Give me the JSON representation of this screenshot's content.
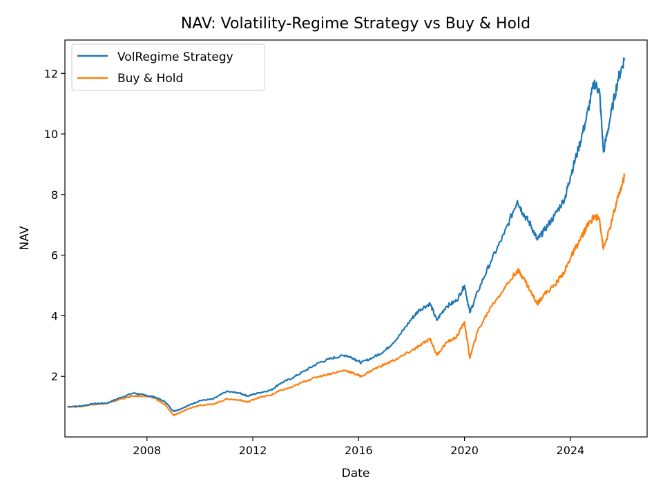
{
  "chart_data": {
    "type": "line",
    "title": "NAV: Volatility-Regime Strategy vs Buy & Hold",
    "xlabel": "Date",
    "ylabel": "NAV",
    "x_ticks": [
      "2008",
      "2012",
      "2016",
      "2020",
      "2024"
    ],
    "y_ticks": [
      "2",
      "4",
      "6",
      "8",
      "10",
      "12"
    ],
    "xlim": [
      2004.9,
      2026.9
    ],
    "ylim": [
      0.0,
      13.1
    ],
    "grid": false,
    "legend_position": "top-left",
    "series": [
      {
        "name": "VolRegime Strategy",
        "color": "#1f77b4",
        "points": [
          [
            2005.0,
            1.0
          ],
          [
            2005.5,
            1.02
          ],
          [
            2006.0,
            1.1
          ],
          [
            2006.5,
            1.12
          ],
          [
            2007.0,
            1.3
          ],
          [
            2007.5,
            1.45
          ],
          [
            2007.9,
            1.38
          ],
          [
            2008.3,
            1.32
          ],
          [
            2008.7,
            1.15
          ],
          [
            2009.0,
            0.85
          ],
          [
            2009.2,
            0.9
          ],
          [
            2009.6,
            1.05
          ],
          [
            2010.0,
            1.2
          ],
          [
            2010.5,
            1.25
          ],
          [
            2011.0,
            1.5
          ],
          [
            2011.5,
            1.45
          ],
          [
            2011.8,
            1.35
          ],
          [
            2012.2,
            1.45
          ],
          [
            2012.7,
            1.55
          ],
          [
            2013.0,
            1.75
          ],
          [
            2013.5,
            1.95
          ],
          [
            2014.0,
            2.2
          ],
          [
            2014.5,
            2.45
          ],
          [
            2015.0,
            2.6
          ],
          [
            2015.5,
            2.7
          ],
          [
            2015.8,
            2.6
          ],
          [
            2016.1,
            2.45
          ],
          [
            2016.6,
            2.65
          ],
          [
            2017.0,
            2.85
          ],
          [
            2017.5,
            3.3
          ],
          [
            2018.0,
            3.9
          ],
          [
            2018.3,
            4.2
          ],
          [
            2018.7,
            4.4
          ],
          [
            2018.95,
            3.85
          ],
          [
            2019.3,
            4.3
          ],
          [
            2019.7,
            4.5
          ],
          [
            2020.0,
            5.0
          ],
          [
            2020.2,
            4.1
          ],
          [
            2020.5,
            4.8
          ],
          [
            2021.0,
            5.8
          ],
          [
            2021.5,
            6.7
          ],
          [
            2022.0,
            7.8
          ],
          [
            2022.2,
            7.4
          ],
          [
            2022.5,
            7.0
          ],
          [
            2022.75,
            6.5
          ],
          [
            2023.0,
            6.8
          ],
          [
            2023.4,
            7.3
          ],
          [
            2023.8,
            7.9
          ],
          [
            2024.0,
            8.6
          ],
          [
            2024.3,
            9.5
          ],
          [
            2024.6,
            10.5
          ],
          [
            2024.9,
            11.7
          ],
          [
            2025.1,
            11.4
          ],
          [
            2025.25,
            9.4
          ],
          [
            2025.5,
            10.5
          ],
          [
            2025.8,
            11.8
          ],
          [
            2026.05,
            12.5
          ]
        ]
      },
      {
        "name": "Buy & Hold",
        "color": "#ff7f0e",
        "points": [
          [
            2005.0,
            1.0
          ],
          [
            2005.5,
            1.0
          ],
          [
            2006.0,
            1.08
          ],
          [
            2006.5,
            1.1
          ],
          [
            2007.0,
            1.25
          ],
          [
            2007.5,
            1.35
          ],
          [
            2007.9,
            1.35
          ],
          [
            2008.3,
            1.28
          ],
          [
            2008.7,
            1.05
          ],
          [
            2009.0,
            0.72
          ],
          [
            2009.2,
            0.78
          ],
          [
            2009.6,
            0.95
          ],
          [
            2010.0,
            1.05
          ],
          [
            2010.5,
            1.08
          ],
          [
            2011.0,
            1.25
          ],
          [
            2011.5,
            1.22
          ],
          [
            2011.8,
            1.15
          ],
          [
            2012.2,
            1.3
          ],
          [
            2012.7,
            1.38
          ],
          [
            2013.0,
            1.52
          ],
          [
            2013.5,
            1.65
          ],
          [
            2014.0,
            1.85
          ],
          [
            2014.5,
            2.0
          ],
          [
            2015.0,
            2.1
          ],
          [
            2015.5,
            2.2
          ],
          [
            2015.8,
            2.1
          ],
          [
            2016.1,
            2.0
          ],
          [
            2016.6,
            2.25
          ],
          [
            2017.0,
            2.4
          ],
          [
            2017.5,
            2.6
          ],
          [
            2018.0,
            2.85
          ],
          [
            2018.3,
            3.0
          ],
          [
            2018.7,
            3.25
          ],
          [
            2018.95,
            2.7
          ],
          [
            2019.3,
            3.1
          ],
          [
            2019.7,
            3.3
          ],
          [
            2020.0,
            3.8
          ],
          [
            2020.2,
            2.6
          ],
          [
            2020.5,
            3.5
          ],
          [
            2021.0,
            4.3
          ],
          [
            2021.5,
            4.9
          ],
          [
            2022.0,
            5.5
          ],
          [
            2022.2,
            5.3
          ],
          [
            2022.5,
            4.8
          ],
          [
            2022.75,
            4.4
          ],
          [
            2023.0,
            4.7
          ],
          [
            2023.4,
            5.0
          ],
          [
            2023.8,
            5.5
          ],
          [
            2024.0,
            5.9
          ],
          [
            2024.3,
            6.4
          ],
          [
            2024.6,
            6.9
          ],
          [
            2024.9,
            7.3
          ],
          [
            2025.1,
            7.2
          ],
          [
            2025.25,
            6.2
          ],
          [
            2025.5,
            6.9
          ],
          [
            2025.8,
            7.9
          ],
          [
            2026.05,
            8.6
          ]
        ]
      }
    ]
  }
}
